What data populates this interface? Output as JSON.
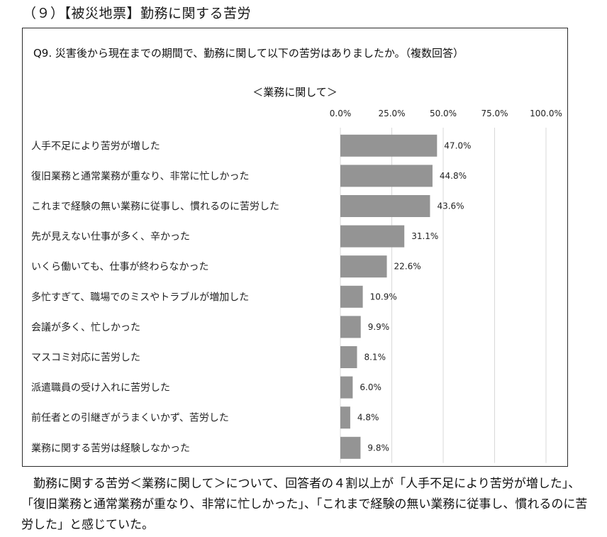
{
  "section_heading": "（９）【被災地票】勤務に関する苦労",
  "question": "Q9. 災害後から現在までの期間で、勤務に関して以下の苦労はありましたか。（複数回答）",
  "caption": "勤務に関する苦労＜業務に関して＞について、回答者の４割以上が「人手不足により苦労が増した」、「復旧業務と通常業務が重なり、非常に忙しかった」、「これまで経験の無い業務に従事し、慣れるのに苦労した」と感じていた。",
  "chart_data": {
    "type": "bar",
    "orientation": "horizontal",
    "title": "＜業務に関して＞",
    "categories": [
      "人手不足により苦労が増した",
      "復旧業務と通常業務が重なり、非常に忙しかった",
      "これまで経験の無い業務に従事し、慣れるのに苦労した",
      "先が見えない仕事が多く、辛かった",
      "いくら働いても、仕事が終わらなかった",
      "多忙すぎて、職場でのミスやトラブルが増加した",
      "会議が多く、忙しかった",
      "マスコミ対応に苦労した",
      "派遣職員の受け入れに苦労した",
      "前任者との引継ぎがうまくいかず、苦労した",
      "業務に関する苦労は経験しなかった"
    ],
    "values": [
      47.0,
      44.8,
      43.6,
      31.1,
      22.6,
      10.9,
      9.9,
      8.1,
      6.0,
      4.8,
      9.8
    ],
    "data_labels": [
      "47.0%",
      "44.8%",
      "43.6%",
      "31.1%",
      "22.6%",
      "10.9%",
      "9.9%",
      "8.1%",
      "6.0%",
      "4.8%",
      "9.8%"
    ],
    "xlim": [
      0,
      100
    ],
    "ticks": [
      0,
      25,
      50,
      75,
      100
    ],
    "tick_labels": [
      "0.0%",
      "25.0%",
      "50.0%",
      "75.0%",
      "100.0%"
    ],
    "axis_position": "top",
    "grid": true,
    "bar_color": "#949494",
    "grid_color": "#d9d9d9"
  }
}
